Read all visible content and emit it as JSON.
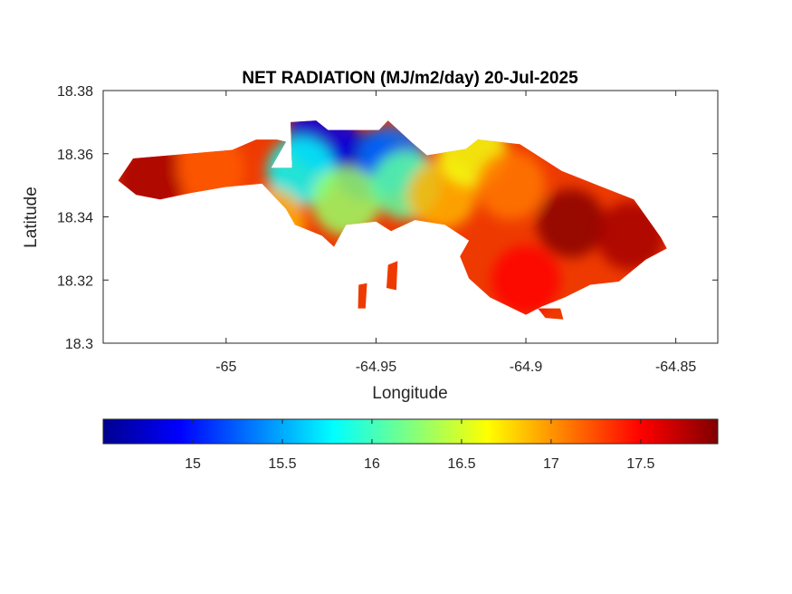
{
  "figure": {
    "title": "NET RADIATION (MJ/m2/day) 20-Jul-2025",
    "xlabel": "Longitude",
    "ylabel": "Latitude"
  },
  "axes": {
    "xlim": [
      -65.041,
      -64.836
    ],
    "ylim": [
      18.3,
      18.38
    ],
    "xticks": [
      {
        "value": -65.0,
        "label": "-65"
      },
      {
        "value": -64.95,
        "label": "-64.95"
      },
      {
        "value": -64.9,
        "label": "-64.9"
      },
      {
        "value": -64.85,
        "label": "-64.85"
      }
    ],
    "yticks": [
      {
        "value": 18.3,
        "label": "18.3"
      },
      {
        "value": 18.32,
        "label": "18.32"
      },
      {
        "value": 18.34,
        "label": "18.34"
      },
      {
        "value": 18.36,
        "label": "18.36"
      },
      {
        "value": 18.38,
        "label": "18.38"
      }
    ]
  },
  "colorbar": {
    "colormap": "jet",
    "range": [
      14.5,
      17.93
    ],
    "ticks": [
      {
        "value": 15,
        "label": "15"
      },
      {
        "value": 15.5,
        "label": "15.5"
      },
      {
        "value": 16,
        "label": "16"
      },
      {
        "value": 16.5,
        "label": "16.5"
      },
      {
        "value": 17,
        "label": "17"
      },
      {
        "value": 17.5,
        "label": "17.5"
      }
    ]
  },
  "map_data": {
    "type": "heatmap",
    "variable": "Net radiation",
    "units": "MJ/m2/day",
    "region_polygon": [
      [
        -65.036,
        18.3515
      ],
      [
        -65.031,
        18.3585
      ],
      [
        -65.016,
        18.3597
      ],
      [
        -64.998,
        18.3612
      ],
      [
        -64.99,
        18.3645
      ],
      [
        -64.983,
        18.3645
      ],
      [
        -64.98,
        18.3638
      ],
      [
        -64.985,
        18.3555
      ],
      [
        -64.978,
        18.3555
      ],
      [
        -64.9785,
        18.37
      ],
      [
        -64.97,
        18.3705
      ],
      [
        -64.966,
        18.3675
      ],
      [
        -64.949,
        18.3675
      ],
      [
        -64.946,
        18.3705
      ],
      [
        -64.938,
        18.3635
      ],
      [
        -64.933,
        18.3595
      ],
      [
        -64.92,
        18.3615
      ],
      [
        -64.916,
        18.3645
      ],
      [
        -64.902,
        18.363
      ],
      [
        -64.888,
        18.3545
      ],
      [
        -64.876,
        18.35
      ],
      [
        -64.864,
        18.3455
      ],
      [
        -64.855,
        18.3335
      ],
      [
        -64.853,
        18.33
      ],
      [
        -64.86,
        18.3265
      ],
      [
        -64.869,
        18.3195
      ],
      [
        -64.8785,
        18.3185
      ],
      [
        -64.887,
        18.3145
      ],
      [
        -64.895,
        18.3115
      ],
      [
        -64.9,
        18.309
      ],
      [
        -64.912,
        18.3145
      ],
      [
        -64.919,
        18.3205
      ],
      [
        -64.922,
        18.3275
      ],
      [
        -64.919,
        18.3325
      ],
      [
        -64.927,
        18.3375
      ],
      [
        -64.937,
        18.339
      ],
      [
        -64.945,
        18.3355
      ],
      [
        -64.95,
        18.3385
      ],
      [
        -64.96,
        18.3375
      ],
      [
        -64.964,
        18.3305
      ],
      [
        -64.968,
        18.334
      ],
      [
        -64.977,
        18.3375
      ],
      [
        -64.98,
        18.3425
      ],
      [
        -64.988,
        18.3505
      ],
      [
        -65.0,
        18.3495
      ],
      [
        -65.012,
        18.3475
      ],
      [
        -65.022,
        18.3455
      ],
      [
        -65.03,
        18.347
      ]
    ],
    "islets": [
      [
        [
          -64.9465,
          18.3175
        ],
        [
          -64.9432,
          18.3168
        ],
        [
          -64.9428,
          18.326
        ],
        [
          -64.946,
          18.3248
        ]
      ],
      [
        [
          -64.956,
          18.311
        ],
        [
          -64.9535,
          18.311
        ],
        [
          -64.953,
          18.319
        ],
        [
          -64.9558,
          18.3185
        ]
      ],
      [
        [
          -64.896,
          18.311
        ],
        [
          -64.8885,
          18.311
        ],
        [
          -64.8875,
          18.3075
        ],
        [
          -64.8935,
          18.308
        ]
      ]
    ],
    "field_hotspots": [
      {
        "lon": -64.953,
        "lat": 18.356,
        "value": 14.7
      },
      {
        "lon": -64.968,
        "lat": 18.366,
        "value": 14.85
      },
      {
        "lon": -64.975,
        "lat": 18.3545,
        "value": 15.8
      },
      {
        "lon": -64.945,
        "lat": 18.358,
        "value": 15.3
      },
      {
        "lon": -64.96,
        "lat": 18.345,
        "value": 16.3
      },
      {
        "lon": -64.94,
        "lat": 18.35,
        "value": 16.1
      },
      {
        "lon": -64.928,
        "lat": 18.347,
        "value": 16.9
      },
      {
        "lon": -64.918,
        "lat": 18.3605,
        "value": 16.6
      },
      {
        "lon": -64.905,
        "lat": 18.35,
        "value": 17.1
      },
      {
        "lon": -64.885,
        "lat": 18.338,
        "value": 17.9
      },
      {
        "lon": -64.865,
        "lat": 18.334,
        "value": 17.8
      },
      {
        "lon": -64.9,
        "lat": 18.32,
        "value": 17.5
      },
      {
        "lon": -65.025,
        "lat": 18.352,
        "value": 17.8
      },
      {
        "lon": -65.005,
        "lat": 18.355,
        "value": 17.2
      },
      {
        "lon": -64.985,
        "lat": 18.338,
        "value": 16.9
      }
    ]
  }
}
